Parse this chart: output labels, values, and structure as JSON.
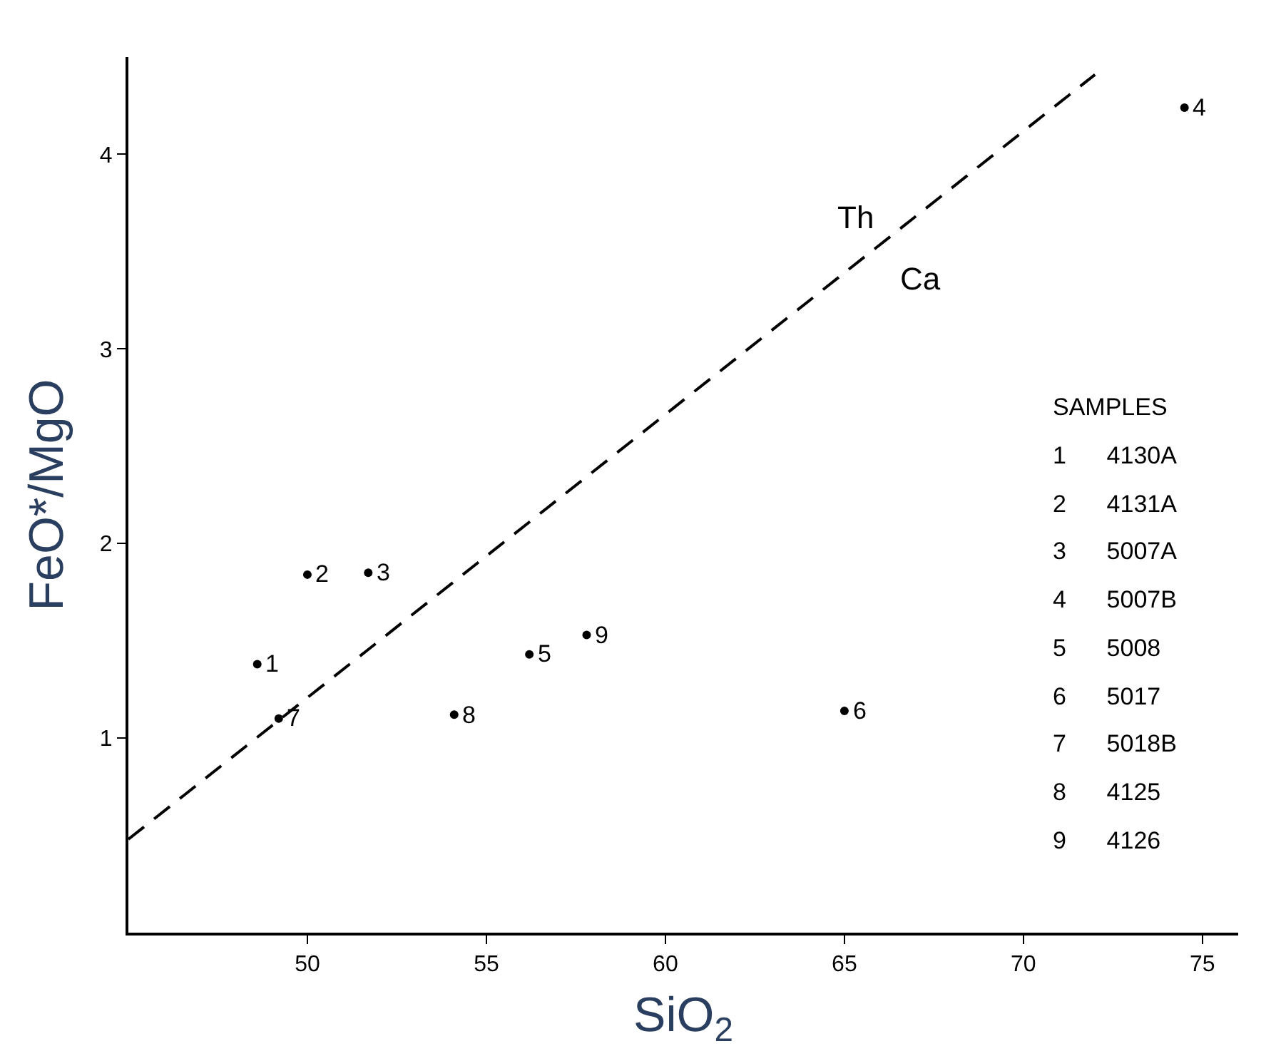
{
  "chart_data": {
    "type": "scatter",
    "xlabel": "SiO$_{2}$",
    "ylabel": "FeO*/MgO",
    "xlim": [
      45,
      76
    ],
    "ylim": [
      0,
      4.5
    ],
    "xticks": [
      50,
      55,
      60,
      65,
      70,
      75
    ],
    "yticks": [
      1,
      2,
      3,
      4
    ],
    "marker": "circle",
    "series": [
      {
        "color": "#000000",
        "x": [
          48.6,
          50.0,
          51.7,
          74.5,
          56.2,
          65.0,
          49.2,
          54.1,
          57.8
        ],
        "values": [
          1.38,
          1.84,
          1.85,
          4.24,
          1.43,
          1.14,
          1.1,
          1.12,
          1.53
        ]
      },
      {
        "type": "line",
        "line_style": "dashed",
        "marker": "none",
        "color": "#000000",
        "x": [
          45,
          72
        ],
        "values": [
          0.48,
          4.41
        ]
      }
    ],
    "annotations": [
      "Th",
      "Ca",
      {
        "text": "1",
        "x": 48.6,
        "y": 1.38
      },
      {
        "text": "2",
        "x": 50.0,
        "y": 1.84
      },
      {
        "text": "3",
        "x": 51.7,
        "y": 1.85
      },
      {
        "text": "4",
        "x": 74.5,
        "y": 4.24
      },
      {
        "text": "5",
        "x": 56.2,
        "y": 1.43
      },
      {
        "text": "6",
        "x": 65.0,
        "y": 1.14
      },
      {
        "text": "7",
        "x": 49.2,
        "y": 1.1
      },
      {
        "text": "8",
        "x": 54.1,
        "y": 1.12
      },
      {
        "text": "9",
        "x": 57.8,
        "y": 1.53
      },
      "SAMPLES",
      "1      4130A",
      "2      4131A",
      "3      5007A",
      "4      5007B",
      "5      5008",
      "6      5017",
      "7      5018B",
      "8      4125",
      "9      4126"
    ]
  }
}
